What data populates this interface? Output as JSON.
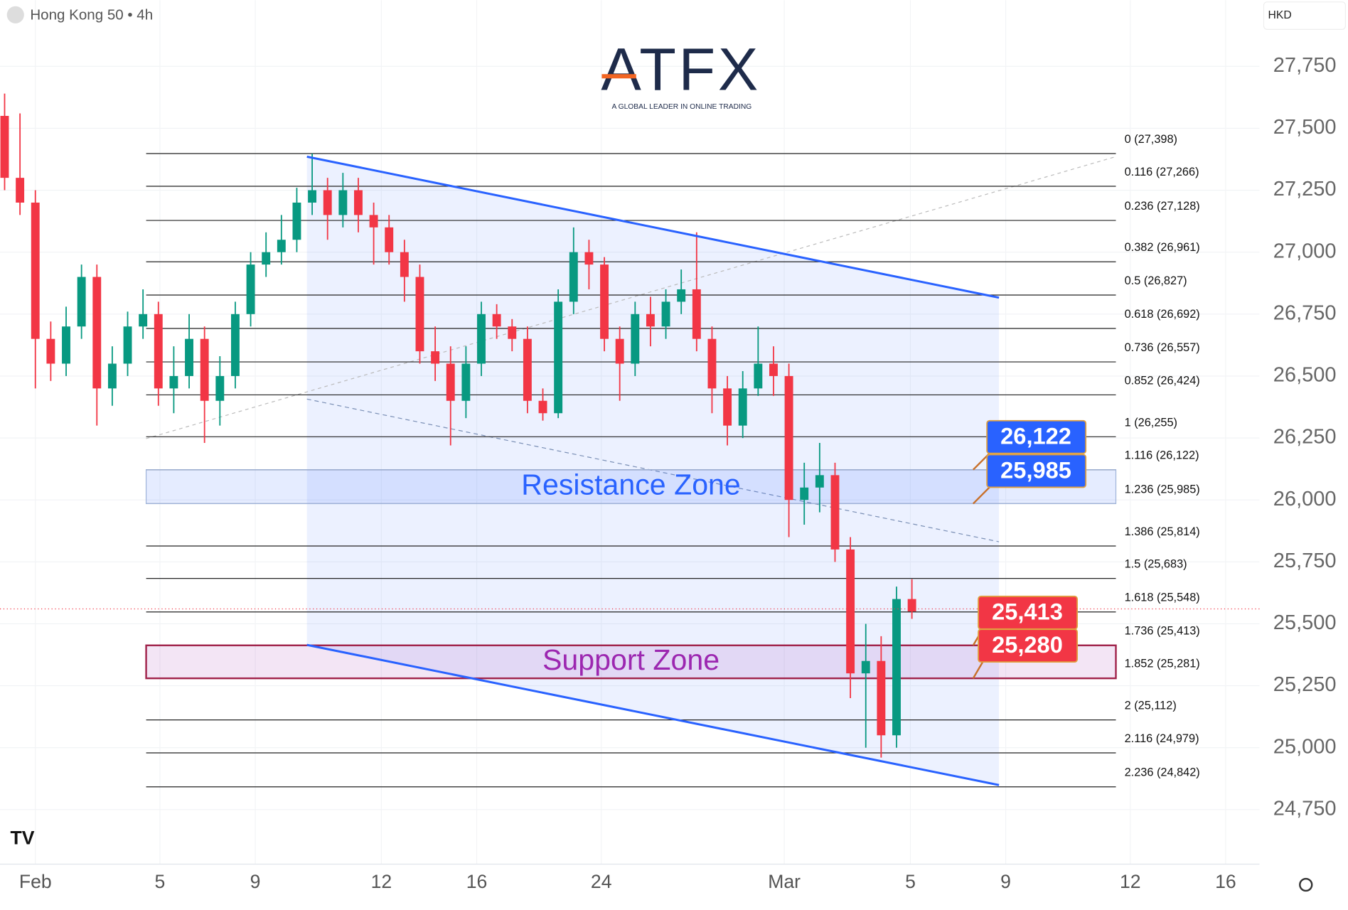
{
  "header": {
    "symbol": "Hong Kong 50 • 4h",
    "currency": "HKD"
  },
  "logo": {
    "name": "ATFX",
    "tagline": "A GLOBAL LEADER IN ONLINE TRADING"
  },
  "chart_data": {
    "type": "candlestick",
    "up_color": "#089981",
    "down_color": "#f23645",
    "open": [
      27550,
      27300,
      27200,
      26650,
      26550,
      26700,
      26900,
      26450,
      26550,
      26700,
      26750,
      26450,
      26500,
      26650,
      26400,
      26500,
      26750,
      26950,
      27000,
      27050,
      27200,
      27250,
      27150,
      27250,
      27150,
      27100,
      27000,
      26900,
      26600,
      26550,
      26400,
      26550,
      26750,
      26700,
      26650,
      26400,
      26350,
      26800,
      27000,
      26950,
      26650,
      26550,
      26750,
      26700,
      26800,
      26850,
      26650,
      26450,
      26300,
      26450,
      26550,
      26500,
      26000,
      26050,
      26100,
      25800,
      25300,
      25350,
      25050,
      25600
    ],
    "high": [
      27640,
      27560,
      27250,
      26720,
      26780,
      26950,
      26950,
      26620,
      26760,
      26850,
      26800,
      26620,
      26750,
      26700,
      26580,
      26800,
      27000,
      27080,
      27150,
      27260,
      27398,
      27300,
      27320,
      27300,
      27200,
      27150,
      27050,
      26950,
      26700,
      26620,
      26620,
      26800,
      26790,
      26730,
      26700,
      26450,
      26850,
      27100,
      27050,
      26980,
      26700,
      26800,
      26820,
      26850,
      26930,
      27080,
      26700,
      26500,
      26520,
      26700,
      26620,
      26550,
      26150,
      26230,
      26150,
      25850,
      25500,
      25450,
      25650,
      25680
    ],
    "low": [
      27250,
      27150,
      26450,
      26480,
      26500,
      26650,
      26300,
      26380,
      26500,
      26650,
      26380,
      26350,
      26450,
      26230,
      26300,
      26450,
      26700,
      26900,
      26950,
      27000,
      27150,
      27050,
      27100,
      27080,
      26950,
      26950,
      26800,
      26550,
      26480,
      26220,
      26330,
      26500,
      26650,
      26600,
      26350,
      26320,
      26330,
      26750,
      26850,
      26600,
      26400,
      26500,
      26620,
      26650,
      26750,
      26600,
      26350,
      26220,
      26250,
      26420,
      26420,
      25850,
      25900,
      25950,
      25750,
      25200,
      25000,
      24960,
      25000,
      25520
    ],
    "close": [
      27300,
      27200,
      26650,
      26550,
      26700,
      26900,
      26450,
      26550,
      26700,
      26750,
      26450,
      26500,
      26650,
      26400,
      26500,
      26750,
      26950,
      27000,
      27050,
      27200,
      27250,
      27150,
      27250,
      27150,
      27100,
      27000,
      26900,
      26600,
      26550,
      26400,
      26550,
      26750,
      26700,
      26650,
      26400,
      26350,
      26800,
      27000,
      26950,
      26650,
      26550,
      26750,
      26700,
      26800,
      26850,
      26650,
      26450,
      26300,
      26450,
      26550,
      26500,
      26000,
      26050,
      26100,
      25800,
      25300,
      25350,
      25050,
      25600,
      25550
    ],
    "last_price": 25560,
    "xlim": [
      -0.3,
      81.6
    ],
    "xticks": [
      {
        "value": 2,
        "label": "Feb"
      },
      {
        "value": 10.1,
        "label": "5"
      },
      {
        "value": 16.3,
        "label": "9"
      },
      {
        "value": 24.5,
        "label": "12"
      },
      {
        "value": 30.7,
        "label": "16"
      },
      {
        "value": 38.8,
        "label": "24"
      },
      {
        "value": 50.7,
        "label": "Mar"
      },
      {
        "value": 58.9,
        "label": "5"
      },
      {
        "value": 65.1,
        "label": "9"
      },
      {
        "value": 73.2,
        "label": "12"
      },
      {
        "value": 79.4,
        "label": "16"
      }
    ],
    "ylim": [
      24530,
      28017
    ],
    "yticks": [
      {
        "value": 24750,
        "label": "24,750"
      },
      {
        "value": 25000,
        "label": "25,000"
      },
      {
        "value": 25250,
        "label": "25,250"
      },
      {
        "value": 25500,
        "label": "25,500"
      },
      {
        "value": 25750,
        "label": "25,750"
      },
      {
        "value": 26000,
        "label": "26,000"
      },
      {
        "value": 26250,
        "label": "26,250"
      },
      {
        "value": 26500,
        "label": "26,500"
      },
      {
        "value": 26750,
        "label": "26,750"
      },
      {
        "value": 27000,
        "label": "27,000"
      },
      {
        "value": 27250,
        "label": "27,250"
      },
      {
        "value": 27500,
        "label": "27,500"
      },
      {
        "value": 27750,
        "label": "27,750"
      }
    ],
    "grid": true,
    "fib_levels": [
      {
        "label": "0 (27,398)",
        "value": 27398
      },
      {
        "label": "0.116 (27,266)",
        "value": 27266
      },
      {
        "label": "0.236 (27,128)",
        "value": 27128
      },
      {
        "label": "0.382 (26,961)",
        "value": 26961
      },
      {
        "label": "0.5 (26,827)",
        "value": 26827
      },
      {
        "label": "0.618 (26,692)",
        "value": 26692
      },
      {
        "label": "0.736 (26,557)",
        "value": 26557
      },
      {
        "label": "0.852 (26,424)",
        "value": 26424
      },
      {
        "label": "1 (26,255)",
        "value": 26255
      },
      {
        "label": "1.116 (26,122)",
        "value": 26122
      },
      {
        "label": "1.236 (25,985)",
        "value": 25985
      },
      {
        "label": "1.386 (25,814)",
        "value": 25814
      },
      {
        "label": "1.5 (25,683)",
        "value": 25683
      },
      {
        "label": "1.618 (25,548)",
        "value": 25548
      },
      {
        "label": "1.736 (25,413)",
        "value": 25413
      },
      {
        "label": "1.852 (25,281)",
        "value": 25281
      },
      {
        "label": "2 (25,112)",
        "value": 25112
      },
      {
        "label": "2.116 (24,979)",
        "value": 24979
      },
      {
        "label": "2.236 (24,842)",
        "value": 24842
      }
    ],
    "zones": [
      {
        "label": "Resistance Zone",
        "range": [
          25985,
          26122
        ],
        "color": "#2962ff"
      },
      {
        "label": "Support Zone",
        "range": [
          25280,
          25413
        ],
        "color": "#9c27b0"
      }
    ],
    "price_labels": [
      {
        "label": "26,122",
        "value": 26122,
        "color": "#2962ff"
      },
      {
        "label": "25,985",
        "value": 25985,
        "color": "#2962ff"
      },
      {
        "label": "25,413",
        "value": 25413,
        "color": "#f23645"
      },
      {
        "label": "25,280",
        "value": 25280,
        "color": "#f23645"
      }
    ]
  }
}
